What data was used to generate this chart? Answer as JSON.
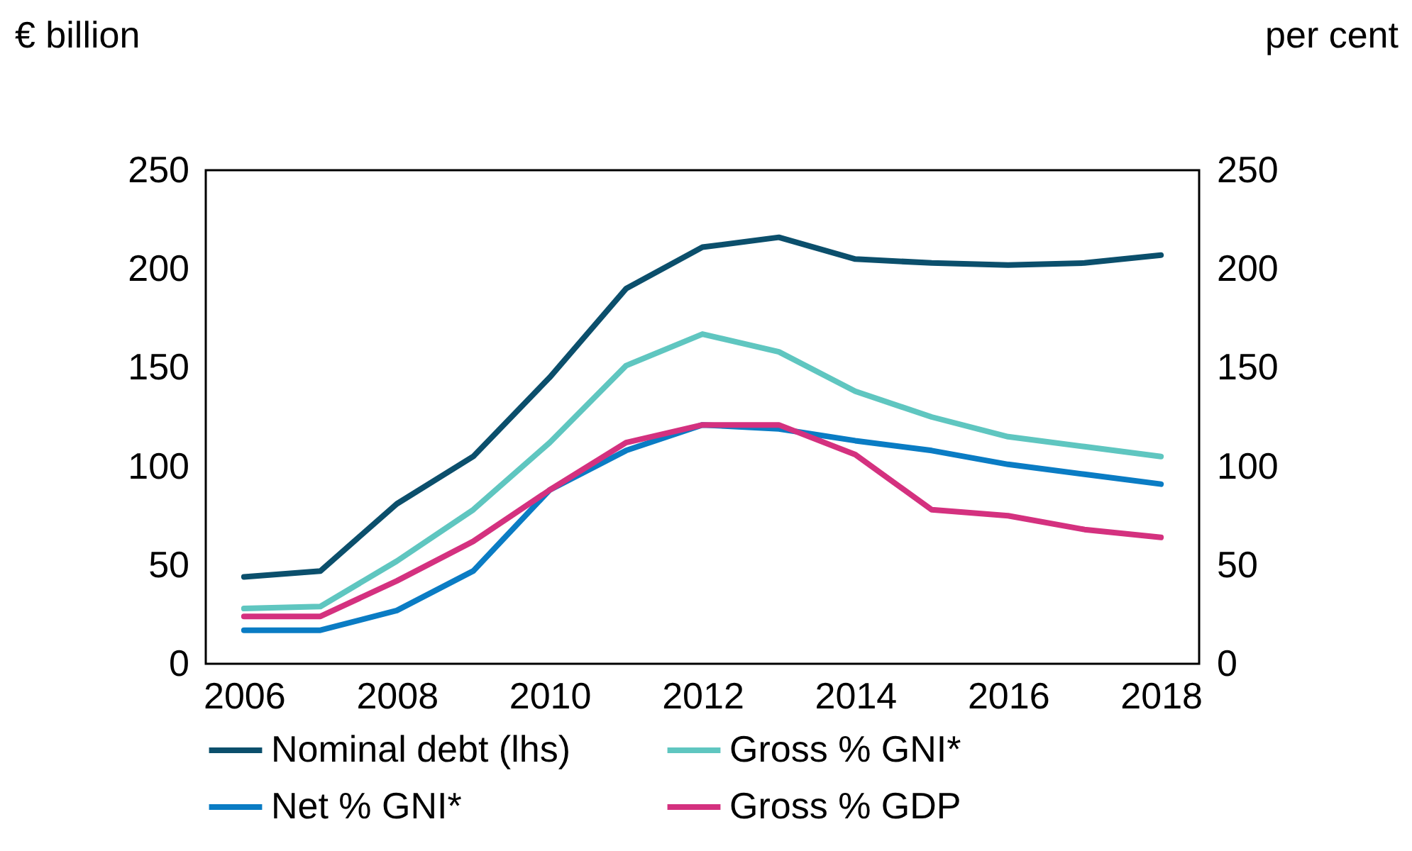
{
  "chart_data": {
    "type": "line",
    "ylabel": "€ billion",
    "y2label": "per cent",
    "x": [
      2006,
      2007,
      2008,
      2009,
      2010,
      2011,
      2012,
      2013,
      2014,
      2015,
      2016,
      2017,
      2018
    ],
    "xlim": [
      2005.5,
      2018.5
    ],
    "xticks": [
      2006,
      2008,
      2010,
      2012,
      2014,
      2016,
      2018
    ],
    "ylim": [
      0,
      250
    ],
    "yticks": [
      0,
      50,
      100,
      150,
      200,
      250
    ],
    "y2lim": [
      0,
      250
    ],
    "y2ticks": [
      0,
      50,
      100,
      150,
      200,
      250
    ],
    "legend": "bottom",
    "line_style": "solid",
    "marker": "none",
    "series": [
      {
        "name": "Nominal debt (lhs)",
        "color": "#0b4f6c",
        "values": [
          44,
          47,
          81,
          105,
          145,
          190,
          211,
          216,
          205,
          203,
          202,
          203,
          207
        ]
      },
      {
        "name": "Gross % GNI*",
        "color": "#5fc6c0",
        "values": [
          28,
          29,
          52,
          78,
          112,
          151,
          167,
          158,
          138,
          125,
          115,
          110,
          105
        ]
      },
      {
        "name": "Net % GNI*",
        "color": "#0a7cc4",
        "values": [
          17,
          17,
          27,
          47,
          88,
          108,
          121,
          119,
          113,
          108,
          101,
          96,
          91
        ]
      },
      {
        "name": "Gross % GDP",
        "color": "#d4317f",
        "values": [
          24,
          24,
          42,
          62,
          88,
          112,
          121,
          121,
          106,
          78,
          75,
          68,
          64
        ]
      }
    ]
  }
}
